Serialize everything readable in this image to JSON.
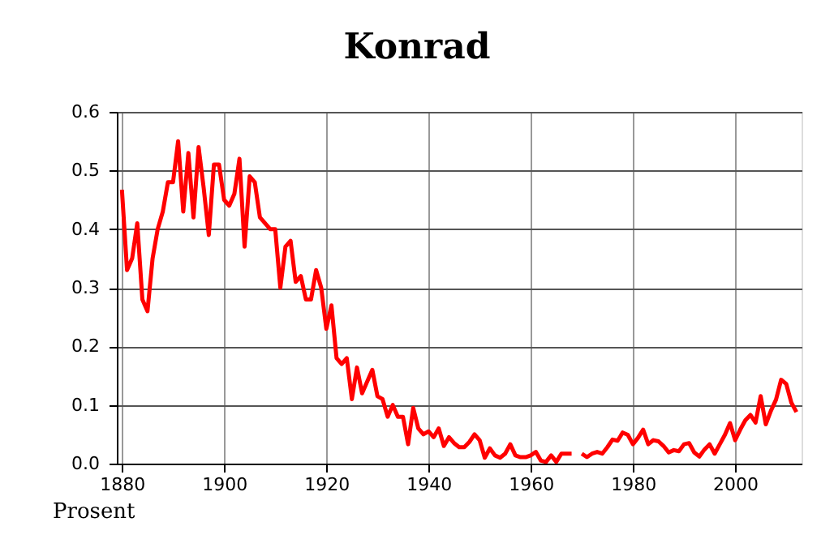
{
  "chart_data": {
    "type": "line",
    "title": "Konrad",
    "ylabel": "Prosent",
    "x": [
      1880,
      1881,
      1882,
      1883,
      1884,
      1885,
      1886,
      1887,
      1888,
      1889,
      1890,
      1891,
      1892,
      1893,
      1894,
      1895,
      1896,
      1897,
      1898,
      1899,
      1900,
      1901,
      1902,
      1903,
      1904,
      1905,
      1906,
      1907,
      1908,
      1909,
      1910,
      1911,
      1912,
      1913,
      1914,
      1915,
      1916,
      1917,
      1918,
      1919,
      1920,
      1921,
      1922,
      1923,
      1924,
      1925,
      1926,
      1927,
      1928,
      1929,
      1930,
      1931,
      1932,
      1933,
      1934,
      1935,
      1936,
      1937,
      1938,
      1939,
      1940,
      1941,
      1942,
      1943,
      1944,
      1945,
      1946,
      1947,
      1948,
      1949,
      1950,
      1951,
      1952,
      1953,
      1954,
      1955,
      1956,
      1957,
      1958,
      1959,
      1960,
      1961,
      1962,
      1963,
      1964,
      1965,
      1966,
      1967,
      1968,
      1969,
      1970,
      1971,
      1972,
      1973,
      1974,
      1975,
      1976,
      1977,
      1978,
      1979,
      1980,
      1981,
      1982,
      1983,
      1984,
      1985,
      1986,
      1987,
      1988,
      1989,
      1990,
      1991,
      1992,
      1993,
      1994,
      1995,
      1996,
      1997,
      1998,
      1999,
      2000,
      2001,
      2002,
      2003,
      2004,
      2005,
      2006,
      2007,
      2008,
      2009,
      2010,
      2011,
      2012
    ],
    "series": [
      {
        "color": "#ff0000",
        "values": [
          0.467,
          0.33,
          0.35,
          0.41,
          0.28,
          0.26,
          0.35,
          0.4,
          0.43,
          0.48,
          0.48,
          0.55,
          0.43,
          0.53,
          0.42,
          0.54,
          0.47,
          0.39,
          0.51,
          0.51,
          0.45,
          0.44,
          0.46,
          0.52,
          0.37,
          0.49,
          0.48,
          0.42,
          0.41,
          0.4,
          0.4,
          0.3,
          0.37,
          0.38,
          0.31,
          0.32,
          0.28,
          0.28,
          0.33,
          0.3,
          0.23,
          0.27,
          0.18,
          0.17,
          0.18,
          0.11,
          0.164,
          0.12,
          0.14,
          0.16,
          0.115,
          0.11,
          0.08,
          0.1,
          0.08,
          0.08,
          0.033,
          0.095,
          0.06,
          0.05,
          0.055,
          0.045,
          0.06,
          0.03,
          0.045,
          0.035,
          0.028,
          0.028,
          0.037,
          0.05,
          0.04,
          0.01,
          0.026,
          0.014,
          0.01,
          0.017,
          0.033,
          0.014,
          0.011,
          0.011,
          0.014,
          0.02,
          0.005,
          0.003,
          0.014,
          0.003,
          0.017,
          0.017,
          0.017,
          null,
          0.017,
          0.011,
          0.017,
          0.02,
          0.017,
          0.028,
          0.041,
          0.039,
          0.053,
          0.049,
          0.033,
          0.044,
          0.058,
          0.033,
          0.04,
          0.038,
          0.03,
          0.019,
          0.023,
          0.021,
          0.033,
          0.035,
          0.019,
          0.012,
          0.024,
          0.033,
          0.017,
          0.033,
          0.049,
          0.069,
          0.04,
          0.058,
          0.074,
          0.083,
          0.07,
          0.115,
          0.067,
          0.09,
          0.109,
          0.143,
          0.136,
          0.104,
          0.088
        ]
      }
    ],
    "xlim": [
      1879,
      2013
    ],
    "xticks": [
      1880,
      1900,
      1920,
      1940,
      1960,
      1980,
      2000
    ],
    "ylim": [
      0,
      0.6
    ],
    "yticks": [
      {
        "value": 0,
        "label": "0.0"
      },
      {
        "value": 0.1,
        "label": "0.1"
      },
      {
        "value": 0.2,
        "label": "0.2"
      },
      {
        "value": 0.3,
        "label": "0.3"
      },
      {
        "value": 0.4,
        "label": "0.4"
      },
      {
        "value": 0.5,
        "label": "0.5"
      },
      {
        "value": 0.6,
        "label": "0.6"
      }
    ],
    "grid": true,
    "legend": false,
    "line_style": "solid",
    "marker": "none"
  }
}
